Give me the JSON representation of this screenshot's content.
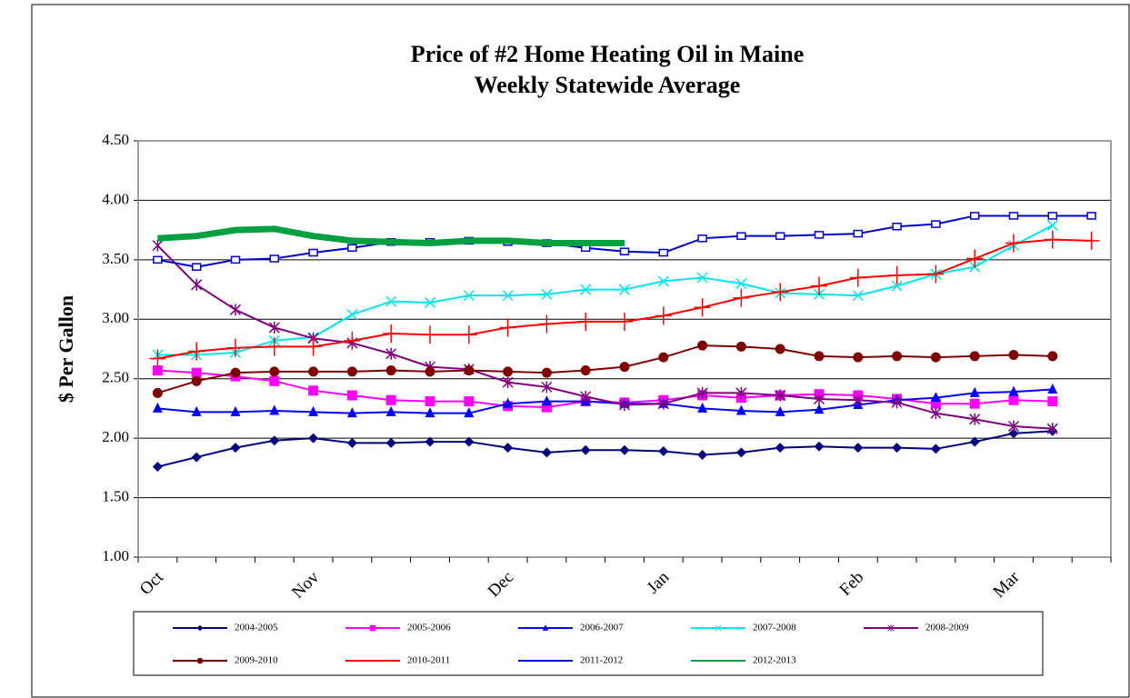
{
  "chart_data": {
    "type": "line",
    "title": "Price of #2 Home Heating Oil in Maine",
    "subtitle": "Weekly Statewide Average",
    "y_label": "$ Per Gallon",
    "categories": [
      "Oct",
      null,
      null,
      null,
      "Nov",
      null,
      null,
      null,
      null,
      "Dec",
      null,
      null,
      null,
      "Jan",
      null,
      null,
      null,
      null,
      "Feb",
      null,
      null,
      null,
      "Mar",
      null,
      null
    ],
    "ylim": [
      1,
      4.5
    ],
    "yticks": [
      {
        "value": 1,
        "label": "1.00"
      },
      {
        "value": 1.5,
        "label": "1.50"
      },
      {
        "value": 2,
        "label": "2.00"
      },
      {
        "value": 2.5,
        "label": "2.50"
      },
      {
        "value": 3,
        "label": "3.00"
      },
      {
        "value": 3.5,
        "label": "3.50"
      },
      {
        "value": 4,
        "label": "4.00"
      },
      {
        "value": 4.5,
        "label": "4.50"
      }
    ],
    "grid": true,
    "legend": "bottom",
    "series": [
      {
        "name": "2004-2005",
        "color": "#000080",
        "marker": "diamond",
        "values": [
          1.76,
          1.84,
          1.92,
          1.98,
          2.0,
          1.96,
          1.96,
          1.97,
          1.97,
          1.92,
          1.88,
          1.9,
          1.9,
          1.89,
          1.86,
          1.88,
          1.92,
          1.93,
          1.92,
          1.92,
          1.91,
          1.97,
          2.04,
          2.06,
          null
        ]
      },
      {
        "name": "2005-2006",
        "color": "#ff00ff",
        "marker": "square",
        "values": [
          2.57,
          2.55,
          2.52,
          2.48,
          2.4,
          2.36,
          2.32,
          2.31,
          2.31,
          2.27,
          2.26,
          2.31,
          2.3,
          2.32,
          2.36,
          2.34,
          2.36,
          2.37,
          2.36,
          2.33,
          2.29,
          2.29,
          2.32,
          2.31,
          null
        ]
      },
      {
        "name": "2006-2007",
        "color": "#0000ff",
        "marker": "triangle",
        "values": [
          2.25,
          2.22,
          2.22,
          2.23,
          2.22,
          2.21,
          2.22,
          2.21,
          2.21,
          2.29,
          2.31,
          2.31,
          2.29,
          2.29,
          2.25,
          2.23,
          2.22,
          2.24,
          2.28,
          2.32,
          2.34,
          2.38,
          2.39,
          2.41,
          null
        ]
      },
      {
        "name": "2007-2008",
        "color": "#00e5ee",
        "marker": "x",
        "values": [
          2.7,
          2.7,
          2.72,
          2.82,
          2.85,
          3.04,
          3.15,
          3.14,
          3.2,
          3.2,
          3.21,
          3.25,
          3.25,
          3.32,
          3.35,
          3.3,
          3.22,
          3.21,
          3.2,
          3.28,
          3.38,
          3.44,
          3.62,
          3.79,
          null
        ]
      },
      {
        "name": "2008-2009",
        "color": "#800080",
        "marker": "star",
        "values": [
          3.62,
          3.29,
          3.08,
          2.93,
          2.84,
          2.8,
          2.71,
          2.6,
          2.58,
          2.47,
          2.43,
          2.35,
          2.28,
          2.29,
          2.38,
          2.38,
          2.36,
          2.33,
          2.32,
          2.3,
          2.21,
          2.16,
          2.1,
          2.08,
          null
        ]
      },
      {
        "name": "2009-2010",
        "color": "#800000",
        "marker": "circle",
        "values": [
          2.38,
          2.48,
          2.55,
          2.56,
          2.56,
          2.56,
          2.57,
          2.56,
          2.57,
          2.56,
          2.55,
          2.57,
          2.6,
          2.68,
          2.78,
          2.77,
          2.75,
          2.69,
          2.68,
          2.69,
          2.68,
          2.69,
          2.7,
          2.69,
          null
        ]
      },
      {
        "name": "2010-2011",
        "color": "#ff0000",
        "marker": "plus",
        "values": [
          2.67,
          2.73,
          2.76,
          2.77,
          2.77,
          2.82,
          2.88,
          2.87,
          2.87,
          2.93,
          2.96,
          2.98,
          2.98,
          3.03,
          3.1,
          3.18,
          3.23,
          3.28,
          3.35,
          3.37,
          3.38,
          3.51,
          3.64,
          3.67,
          3.66
        ]
      },
      {
        "name": "2011-2012",
        "color": "#0000cd",
        "marker": "open-square",
        "values": [
          3.5,
          3.44,
          3.5,
          3.51,
          3.56,
          3.6,
          3.65,
          3.65,
          3.66,
          3.65,
          3.64,
          3.6,
          3.57,
          3.56,
          3.68,
          3.7,
          3.7,
          3.71,
          3.72,
          3.78,
          3.8,
          3.87,
          3.87,
          3.87,
          3.87
        ]
      },
      {
        "name": "2012-2013",
        "color": "#00a040",
        "marker": "none",
        "line_width": 7,
        "values": [
          3.68,
          3.7,
          3.75,
          3.76,
          3.7,
          3.66,
          3.65,
          3.64,
          3.66,
          3.66,
          3.64,
          3.64,
          3.64,
          null,
          null,
          null,
          null,
          null,
          null,
          null,
          null,
          null,
          null,
          null,
          null
        ]
      }
    ]
  }
}
